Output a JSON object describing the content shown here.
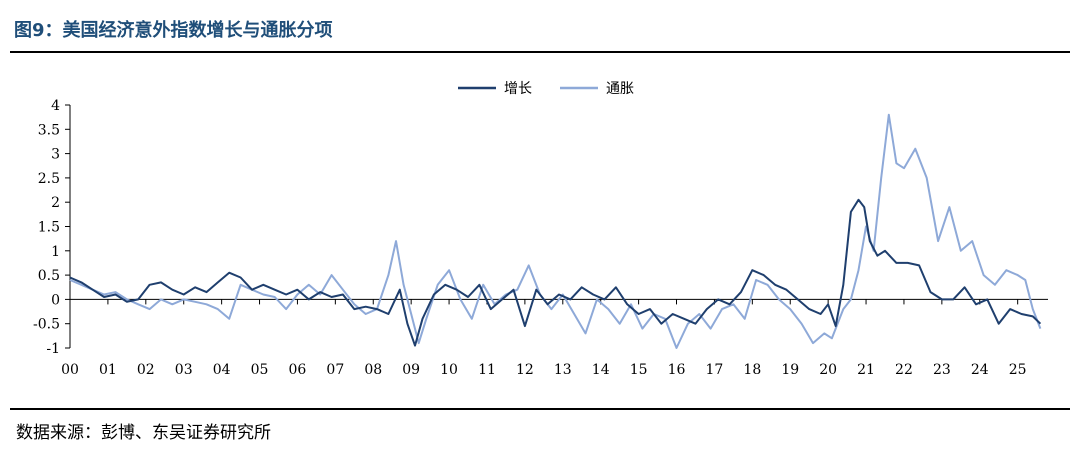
{
  "header": {
    "title": "图9：美国经济意外指数增长与通胀分项"
  },
  "footer": {
    "source": "数据来源：彭博、东吴证券研究所"
  },
  "chart_data": {
    "type": "line",
    "title": "",
    "xlabel": "",
    "ylabel": "",
    "ylim": [
      -1,
      4
    ],
    "yticks": [
      "4",
      "3.5",
      "3",
      "2.5",
      "2",
      "1.5",
      "1",
      "0.5",
      "0",
      "-0.5",
      "-1"
    ],
    "xlim": [
      2000,
      2025.8
    ],
    "xticks": [
      "00",
      "01",
      "02",
      "03",
      "04",
      "05",
      "06",
      "07",
      "08",
      "09",
      "10",
      "11",
      "12",
      "13",
      "14",
      "15",
      "16",
      "17",
      "18",
      "19",
      "20",
      "21",
      "22",
      "23",
      "24",
      "25"
    ],
    "legend": {
      "placement": "top-center"
    },
    "grid": false,
    "series": [
      {
        "name": "增长",
        "color": "#1f3f6e",
        "x": [
          2000.0,
          2000.3,
          2000.6,
          2000.9,
          2001.2,
          2001.5,
          2001.8,
          2002.1,
          2002.4,
          2002.7,
          2003.0,
          2003.3,
          2003.6,
          2003.9,
          2004.2,
          2004.5,
          2004.8,
          2005.1,
          2005.4,
          2005.7,
          2006.0,
          2006.3,
          2006.6,
          2006.9,
          2007.2,
          2007.5,
          2007.8,
          2008.1,
          2008.4,
          2008.7,
          2008.9,
          2009.1,
          2009.3,
          2009.6,
          2009.9,
          2010.2,
          2010.5,
          2010.8,
          2011.1,
          2011.4,
          2011.7,
          2012.0,
          2012.3,
          2012.6,
          2012.9,
          2013.2,
          2013.5,
          2013.8,
          2014.1,
          2014.4,
          2014.7,
          2015.0,
          2015.3,
          2015.6,
          2015.9,
          2016.2,
          2016.5,
          2016.8,
          2017.1,
          2017.4,
          2017.7,
          2018.0,
          2018.3,
          2018.6,
          2018.9,
          2019.2,
          2019.5,
          2019.8,
          2020.0,
          2020.2,
          2020.4,
          2020.6,
          2020.8,
          2020.95,
          2021.1,
          2021.3,
          2021.5,
          2021.8,
          2022.1,
          2022.4,
          2022.7,
          2023.0,
          2023.3,
          2023.6,
          2023.9,
          2024.2,
          2024.5,
          2024.8,
          2025.1,
          2025.4,
          2025.6
        ],
        "values": [
          0.45,
          0.35,
          0.2,
          0.05,
          0.1,
          -0.05,
          0.0,
          0.3,
          0.35,
          0.2,
          0.1,
          0.25,
          0.15,
          0.35,
          0.55,
          0.45,
          0.2,
          0.3,
          0.2,
          0.1,
          0.2,
          0.0,
          0.15,
          0.05,
          0.1,
          -0.2,
          -0.15,
          -0.2,
          -0.3,
          0.2,
          -0.5,
          -0.95,
          -0.4,
          0.1,
          0.3,
          0.2,
          0.05,
          0.3,
          -0.2,
          0.0,
          0.2,
          -0.55,
          0.2,
          -0.1,
          0.1,
          0.0,
          0.25,
          0.1,
          0.0,
          0.25,
          -0.1,
          -0.3,
          -0.2,
          -0.5,
          -0.3,
          -0.4,
          -0.5,
          -0.2,
          0.0,
          -0.1,
          0.15,
          0.6,
          0.5,
          0.3,
          0.2,
          0.0,
          -0.2,
          -0.3,
          -0.1,
          -0.55,
          0.3,
          1.8,
          2.05,
          1.9,
          1.2,
          0.9,
          1.0,
          0.75,
          0.75,
          0.7,
          0.15,
          0.0,
          0.0,
          0.25,
          -0.1,
          0.0,
          -0.5,
          -0.2,
          -0.3,
          -0.35,
          -0.5
        ]
      },
      {
        "name": "通胀",
        "color": "#8ea9d8",
        "x": [
          2000.0,
          2000.3,
          2000.6,
          2000.9,
          2001.2,
          2001.5,
          2001.8,
          2002.1,
          2002.4,
          2002.7,
          2003.0,
          2003.3,
          2003.6,
          2003.9,
          2004.2,
          2004.5,
          2004.8,
          2005.1,
          2005.4,
          2005.7,
          2006.0,
          2006.3,
          2006.6,
          2006.9,
          2007.2,
          2007.5,
          2007.8,
          2008.1,
          2008.4,
          2008.6,
          2008.8,
          2009.0,
          2009.2,
          2009.4,
          2009.7,
          2010.0,
          2010.3,
          2010.6,
          2010.9,
          2011.2,
          2011.5,
          2011.8,
          2012.1,
          2012.4,
          2012.7,
          2013.0,
          2013.3,
          2013.6,
          2013.9,
          2014.2,
          2014.5,
          2014.8,
          2015.1,
          2015.4,
          2015.7,
          2016.0,
          2016.3,
          2016.6,
          2016.9,
          2017.2,
          2017.5,
          2017.8,
          2018.1,
          2018.4,
          2018.7,
          2019.0,
          2019.3,
          2019.6,
          2019.9,
          2020.1,
          2020.4,
          2020.6,
          2020.8,
          2021.0,
          2021.2,
          2021.4,
          2021.6,
          2021.8,
          2022.0,
          2022.3,
          2022.6,
          2022.9,
          2023.2,
          2023.5,
          2023.8,
          2024.1,
          2024.4,
          2024.7,
          2025.0,
          2025.2,
          2025.4,
          2025.6
        ],
        "values": [
          0.4,
          0.3,
          0.2,
          0.1,
          0.15,
          0.0,
          -0.1,
          -0.2,
          0.0,
          -0.1,
          0.0,
          -0.05,
          -0.1,
          -0.2,
          -0.4,
          0.3,
          0.2,
          0.1,
          0.05,
          -0.2,
          0.1,
          0.3,
          0.1,
          0.5,
          0.2,
          -0.1,
          -0.3,
          -0.2,
          0.5,
          1.2,
          0.3,
          -0.3,
          -0.9,
          -0.4,
          0.3,
          0.6,
          0.0,
          -0.4,
          0.3,
          -0.1,
          0.1,
          0.2,
          0.7,
          0.1,
          -0.2,
          0.1,
          -0.3,
          -0.7,
          0.0,
          -0.2,
          -0.5,
          -0.1,
          -0.6,
          -0.3,
          -0.4,
          -1.0,
          -0.5,
          -0.3,
          -0.6,
          -0.2,
          -0.1,
          -0.4,
          0.4,
          0.3,
          0.0,
          -0.2,
          -0.5,
          -0.9,
          -0.7,
          -0.8,
          -0.2,
          0.0,
          0.6,
          1.5,
          1.0,
          2.5,
          3.8,
          2.8,
          2.7,
          3.1,
          2.5,
          1.2,
          1.9,
          1.0,
          1.2,
          0.5,
          0.3,
          0.6,
          0.5,
          0.4,
          -0.2,
          -0.6
        ]
      }
    ]
  }
}
